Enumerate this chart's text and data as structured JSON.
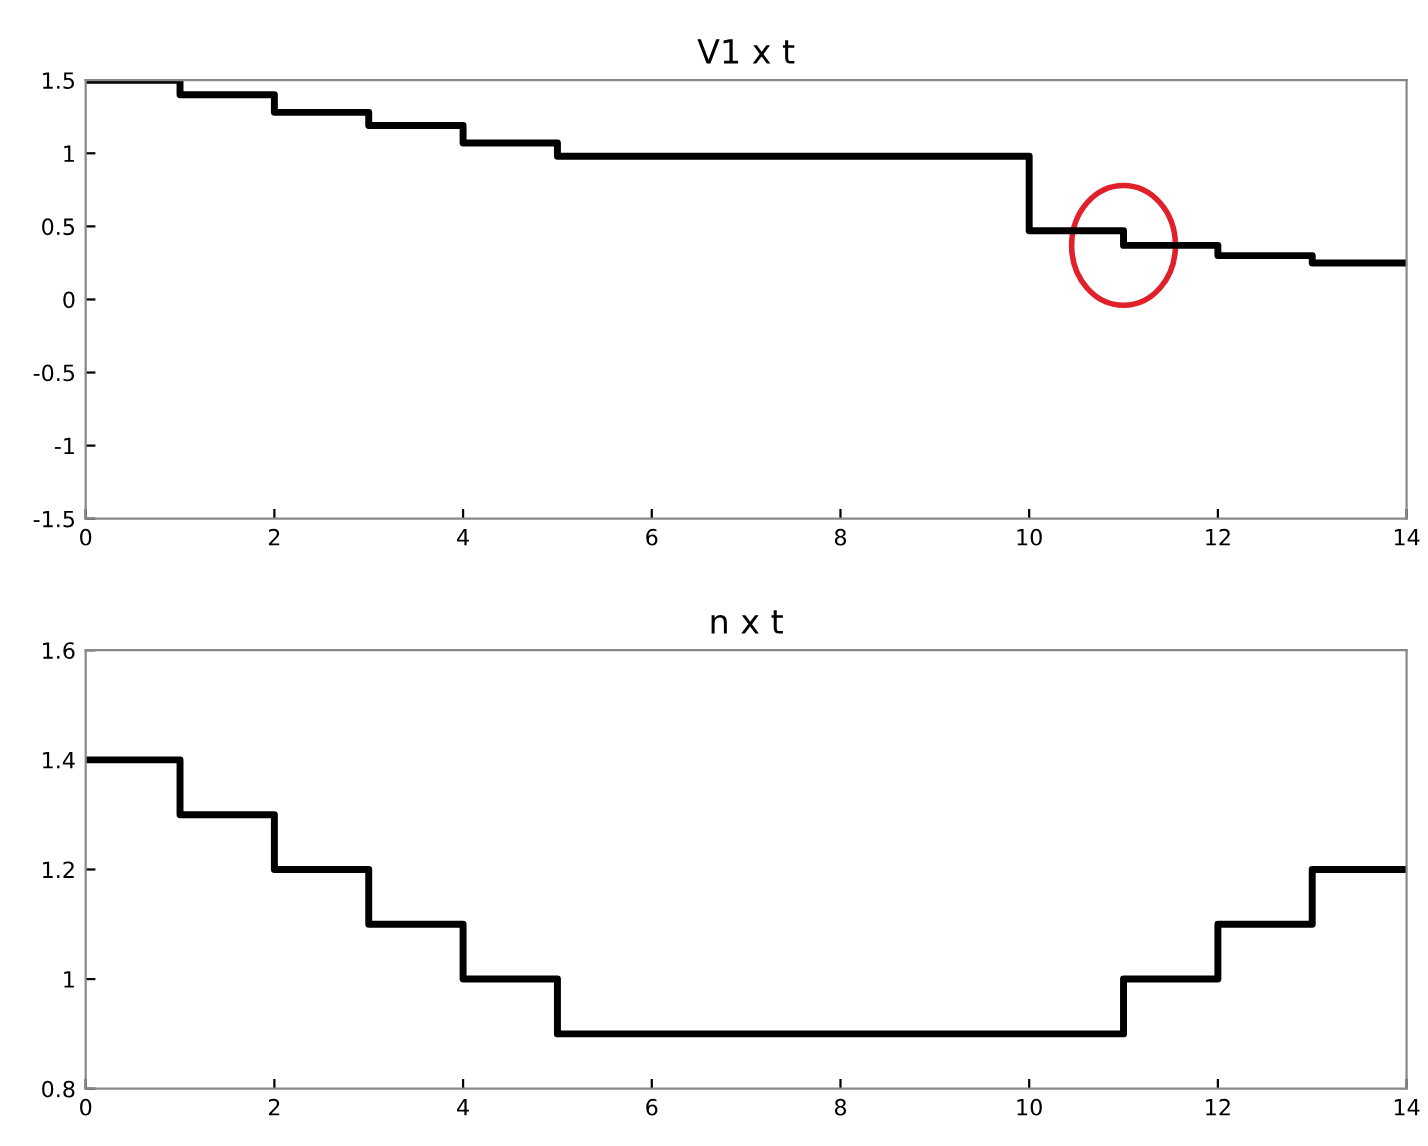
{
  "chart_data": [
    {
      "type": "step",
      "title": "V1 x t",
      "x": [
        0,
        1,
        2,
        3,
        4,
        5,
        6,
        7,
        8,
        9,
        10,
        11,
        12,
        13,
        14
      ],
      "series": [
        {
          "color": "#000000",
          "values": [
            1.5,
            1.4,
            1.28,
            1.19,
            1.07,
            0.98,
            0.98,
            0.98,
            0.98,
            0.98,
            0.47,
            0.37,
            0.3,
            0.25,
            0.25
          ]
        }
      ],
      "xlim": [
        0,
        14
      ],
      "xticks": [
        0,
        2,
        4,
        6,
        8,
        10,
        12,
        14
      ],
      "ylim": [
        -1.5,
        1.5
      ],
      "yticks": [
        {
          "value": -1.5,
          "label": "-1.5"
        },
        {
          "value": -1,
          "label": "-1"
        },
        {
          "value": -0.5,
          "label": "-0.5"
        },
        0,
        0.5,
        1,
        1.5
      ],
      "grid": false
    },
    {
      "type": "step",
      "title": "n x t",
      "x": [
        0,
        1,
        2,
        3,
        4,
        5,
        6,
        7,
        8,
        9,
        10,
        11,
        12,
        13,
        14
      ],
      "series": [
        {
          "color": "#000000",
          "values": [
            1.4,
            1.3,
            1.2,
            1.1,
            1.0,
            0.9,
            0.9,
            0.9,
            0.9,
            0.9,
            0.9,
            1.0,
            1.1,
            1.2,
            1.2
          ]
        }
      ],
      "xlim": [
        0,
        14
      ],
      "xticks": [
        0,
        2,
        4,
        6,
        8,
        10,
        12,
        14
      ],
      "ylim": [
        0.8,
        1.6
      ],
      "yticks": [
        0.8,
        1,
        1.2,
        1.4,
        1.6
      ],
      "grid": false
    }
  ]
}
